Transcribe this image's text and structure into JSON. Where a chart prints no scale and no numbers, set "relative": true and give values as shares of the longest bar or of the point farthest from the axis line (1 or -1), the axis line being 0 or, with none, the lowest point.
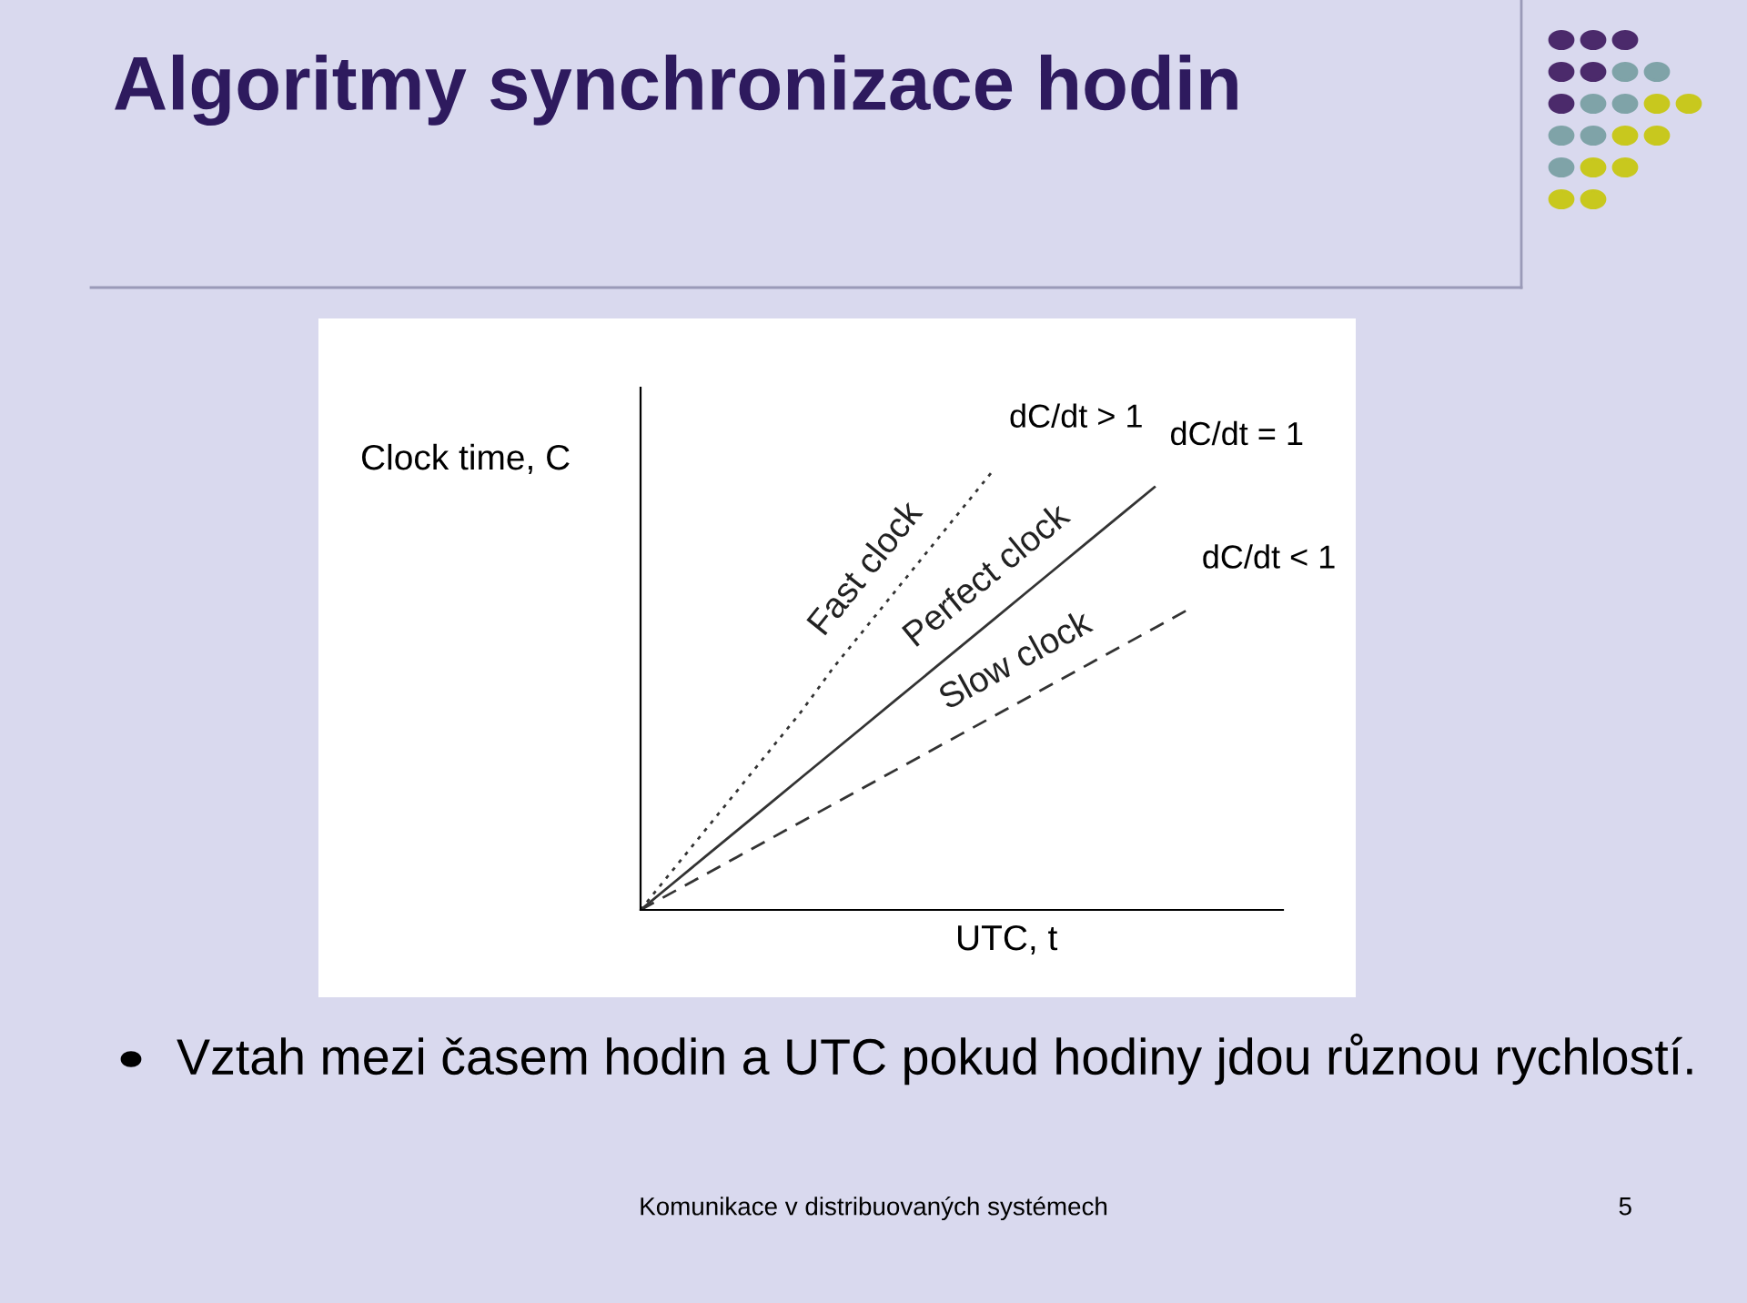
{
  "chart_data": {
    "type": "line",
    "relative": true,
    "title": "Algoritmy synchronizace hodin",
    "xlabel": "UTC, t",
    "ylabel": "Clock time, C",
    "categories": [
      null,
      null,
      null,
      null,
      null,
      null,
      null,
      null,
      null,
      null,
      null,
      null,
      null,
      null,
      null,
      null,
      null,
      null,
      null,
      null,
      null
    ],
    "series": [
      {
        "name": "Fast clock",
        "color": "#333333",
        "line_style": "dotted",
        "values": [
          0,
          0.09,
          0.18,
          0.27,
          0.36,
          0.45,
          0.55,
          0.64,
          0.73,
          0.82,
          0.91,
          1,
          null,
          null,
          null,
          null,
          null,
          null,
          null,
          null,
          null
        ]
      },
      {
        "name": "Perfect clock",
        "color": "#333333",
        "line_style": "solid",
        "values": [
          0,
          0.06,
          0.12,
          0.18,
          0.24,
          0.3,
          0.36,
          0.42,
          0.48,
          0.54,
          0.6,
          0.66,
          0.72,
          0.78,
          0.84,
          0.9,
          0.96,
          null,
          null,
          null,
          null
        ]
      },
      {
        "name": "Slow clock",
        "color": "#333333",
        "line_style": "dashed",
        "values": [
          0,
          0.04,
          0.08,
          0.12,
          0.16,
          0.2,
          0.24,
          0.28,
          0.32,
          0.36,
          0.4,
          0.44,
          0.48,
          0.52,
          0.56,
          0.6,
          0.64,
          0.68,
          null,
          null,
          null
        ]
      }
    ],
    "annotations": [
      "dC/dt > 1",
      "dC/dt = 1",
      "dC/dt < 1",
      "Vztah mezi časem hodin a UTC pokud hodiny jdou různou rychlostí.",
      "Komunikace v distribuovaných systémech",
      "5"
    ]
  }
}
